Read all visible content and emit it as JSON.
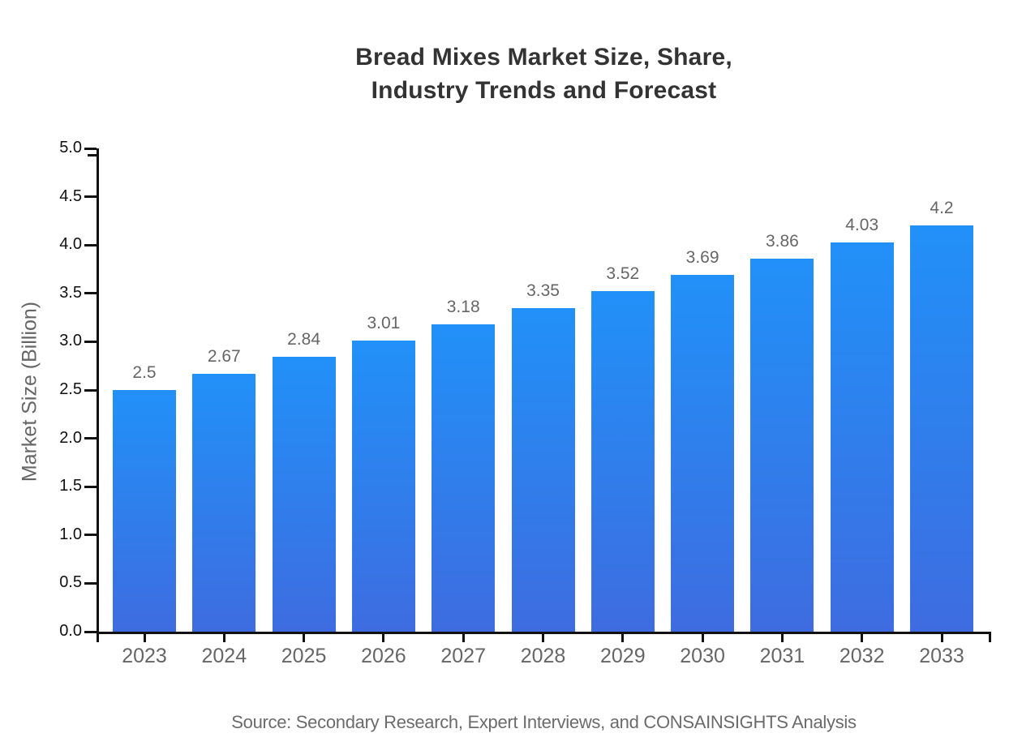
{
  "chart_data": {
    "type": "bar",
    "title": "Bread Mixes Market Size, Share, Industry Trends and Forecast",
    "title_lines": [
      "Bread Mixes Market Size, Share,",
      "Industry Trends and Forecast"
    ],
    "categories": [
      "2023",
      "2024",
      "2025",
      "2026",
      "2027",
      "2028",
      "2029",
      "2030",
      "2031",
      "2032",
      "2033"
    ],
    "values": [
      2.5,
      2.67,
      2.84,
      3.01,
      3.18,
      3.35,
      3.52,
      3.69,
      3.86,
      4.03,
      4.2
    ],
    "value_labels": [
      "2.5",
      "2.67",
      "2.84",
      "3.01",
      "3.18",
      "3.35",
      "3.52",
      "3.69",
      "3.86",
      "4.03",
      "4.2"
    ],
    "xlabel": "",
    "ylabel": "Market Size (Billion)",
    "ylim": [
      0.0,
      5.0
    ],
    "ytick_step": 0.5,
    "ytick_labels": [
      "0.0",
      "0.5",
      "1.0",
      "1.5",
      "2.0",
      "2.5",
      "3.0",
      "3.5",
      "4.0",
      "4.5",
      "5.0"
    ],
    "grid": false,
    "legend": false,
    "bar_color_top": "#2191f8",
    "bar_color_bottom": "#3e6ce0"
  },
  "source_note": "Source: Secondary Research, Expert Interviews, and CONSAINSIGHTS Analysis",
  "colors": {
    "background": "#ffffff",
    "title_text": "#333333",
    "axis_line": "#111111",
    "ytick_label_text": "#111111",
    "xtick_label_text": "#666666",
    "value_label_text": "#666666",
    "y_axis_title_text": "#666666",
    "source_text": "#6b6b6b"
  }
}
